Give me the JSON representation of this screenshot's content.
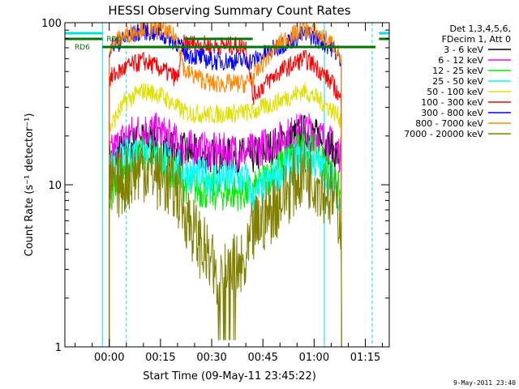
{
  "chart_data": {
    "type": "line",
    "title": "HESSI Observing Summary Count Rates",
    "xlabel": "Start Time (09-May-11 23:45:22)",
    "ylabel": "Count Rate (s⁻¹ detector⁻¹)",
    "y_scale": "log",
    "ylim": [
      1,
      100
    ],
    "xlim_minutes": [
      -13,
      82
    ],
    "x_ticks": [
      {
        "minutes": 0,
        "label": "00:00"
      },
      {
        "minutes": 15,
        "label": "00:15"
      },
      {
        "minutes": 30,
        "label": "00:30"
      },
      {
        "minutes": 45,
        "label": "00:45"
      },
      {
        "minutes": 60,
        "label": "01:00"
      },
      {
        "minutes": 75,
        "label": "01:15"
      }
    ],
    "y_ticks": [
      {
        "value": 1,
        "label": "1"
      },
      {
        "value": 10,
        "label": "10"
      },
      {
        "value": 100,
        "label": "100"
      }
    ],
    "legend_header": [
      "Det 1,3,4,5,6,",
      "FDecim 1, Att 0"
    ],
    "legend_position": "right",
    "stamp": "9-May-2011 23:40",
    "flags": [
      {
        "label": "RD0",
        "color": "#007700",
        "segments": [
          [
            -13,
            -2
          ],
          [
            22,
            42
          ],
          [
            79,
            82
          ]
        ]
      },
      {
        "label": "RD6",
        "color": "#007700",
        "segments": [
          [
            -2,
            20
          ],
          [
            20,
            78
          ]
        ]
      }
    ],
    "saa_shading": {
      "color": "#00e0e0",
      "segments": [
        [
          -13,
          -2
        ],
        [
          79,
          82
        ]
      ]
    },
    "night_lines": {
      "color": "#00e0e0",
      "solid": [
        -2,
        63
      ],
      "dashed": [
        5,
        77
      ]
    },
    "series": [
      {
        "name": "3 - 6 keV",
        "color": "#000000",
        "points": [
          [
            0,
            14
          ],
          [
            5,
            17
          ],
          [
            10,
            19
          ],
          [
            15,
            18
          ],
          [
            20,
            16
          ],
          [
            22,
            16
          ],
          [
            30,
            15
          ],
          [
            40,
            15
          ],
          [
            42,
            15
          ],
          [
            50,
            18
          ],
          [
            57,
            21
          ],
          [
            60,
            20
          ],
          [
            66,
            16
          ],
          [
            68,
            14
          ]
        ]
      },
      {
        "name": "6 - 12 keV",
        "color": "#ff00ff",
        "points": [
          [
            0,
            15
          ],
          [
            5,
            20
          ],
          [
            10,
            22
          ],
          [
            15,
            21
          ],
          [
            20,
            18
          ],
          [
            22,
            17
          ],
          [
            30,
            16
          ],
          [
            40,
            16
          ],
          [
            42,
            16
          ],
          [
            50,
            19
          ],
          [
            57,
            22
          ],
          [
            60,
            21
          ],
          [
            66,
            17
          ],
          [
            68,
            15
          ]
        ]
      },
      {
        "name": "12 - 25 keV",
        "color": "#00ee00",
        "points": [
          [
            0,
            9
          ],
          [
            5,
            13
          ],
          [
            10,
            16
          ],
          [
            15,
            14
          ],
          [
            20,
            11
          ],
          [
            22,
            10
          ],
          [
            30,
            9
          ],
          [
            40,
            9
          ],
          [
            42,
            9
          ],
          [
            50,
            13
          ],
          [
            57,
            17
          ],
          [
            60,
            16
          ],
          [
            66,
            11
          ],
          [
            68,
            8
          ]
        ]
      },
      {
        "name": "25 - 50 keV",
        "color": "#00ffff",
        "points": [
          [
            0,
            12
          ],
          [
            5,
            15
          ],
          [
            10,
            17
          ],
          [
            15,
            15
          ],
          [
            20,
            13
          ],
          [
            22,
            12
          ],
          [
            30,
            11
          ],
          [
            40,
            11
          ],
          [
            42,
            8
          ],
          [
            50,
            12
          ],
          [
            57,
            15
          ],
          [
            60,
            14
          ],
          [
            66,
            10
          ],
          [
            68,
            8
          ]
        ]
      },
      {
        "name": "50 - 100 keV",
        "color": "#e0e000",
        "points": [
          [
            0,
            22
          ],
          [
            5,
            33
          ],
          [
            10,
            38
          ],
          [
            15,
            36
          ],
          [
            20,
            30
          ],
          [
            22,
            28
          ],
          [
            30,
            27
          ],
          [
            40,
            28
          ],
          [
            42,
            28
          ],
          [
            50,
            33
          ],
          [
            57,
            38
          ],
          [
            60,
            35
          ],
          [
            66,
            28
          ],
          [
            68,
            25
          ]
        ]
      },
      {
        "name": "100 - 300 keV",
        "color": "#ff0000",
        "points": [
          [
            0,
            45
          ],
          [
            5,
            53
          ],
          [
            10,
            58
          ],
          [
            15,
            52
          ],
          [
            20,
            45
          ],
          [
            22,
            75
          ],
          [
            30,
            72
          ],
          [
            40,
            72
          ],
          [
            42,
            35
          ],
          [
            50,
            50
          ],
          [
            57,
            60
          ],
          [
            60,
            55
          ],
          [
            66,
            40
          ],
          [
            68,
            32
          ]
        ]
      },
      {
        "name": "300 - 800 keV",
        "color": "#0000ff",
        "points": [
          [
            0,
            70
          ],
          [
            5,
            80
          ],
          [
            10,
            90
          ],
          [
            15,
            85
          ],
          [
            20,
            75
          ],
          [
            22,
            65
          ],
          [
            30,
            58
          ],
          [
            40,
            58
          ],
          [
            42,
            58
          ],
          [
            50,
            72
          ],
          [
            57,
            85
          ],
          [
            60,
            82
          ],
          [
            66,
            68
          ],
          [
            68,
            55
          ]
        ]
      },
      {
        "name": "800 - 7000 keV",
        "color": "#ff8800",
        "points": [
          [
            0,
            72
          ],
          [
            5,
            84
          ],
          [
            10,
            94
          ],
          [
            15,
            90
          ],
          [
            20,
            80
          ],
          [
            22,
            50
          ],
          [
            30,
            42
          ],
          [
            40,
            42
          ],
          [
            42,
            45
          ],
          [
            50,
            75
          ],
          [
            57,
            92
          ],
          [
            60,
            88
          ],
          [
            66,
            72
          ],
          [
            68,
            58
          ]
        ]
      },
      {
        "name": "7000 - 20000 keV",
        "color": "#808000",
        "points": [
          [
            0,
            9
          ],
          [
            5,
            11
          ],
          [
            10,
            13
          ],
          [
            15,
            11
          ],
          [
            20,
            9
          ],
          [
            22,
            7
          ],
          [
            25,
            5
          ],
          [
            30,
            3
          ],
          [
            38,
            3
          ],
          [
            40,
            3
          ],
          [
            42,
            5
          ],
          [
            50,
            8
          ],
          [
            57,
            12
          ],
          [
            60,
            11
          ],
          [
            66,
            8
          ],
          [
            68,
            6
          ]
        ]
      }
    ]
  }
}
